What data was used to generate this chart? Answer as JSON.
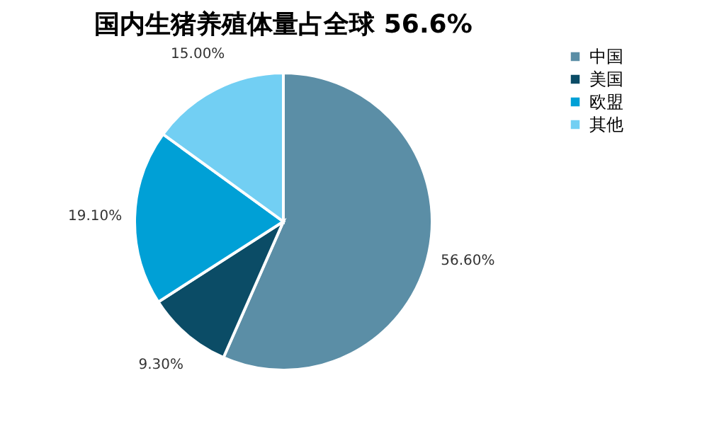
{
  "chart_data": {
    "type": "pie",
    "title": "国内生猪养殖体量占全球 56.6%",
    "categories": [
      "中国",
      "美国",
      "欧盟",
      "其他"
    ],
    "values": [
      56.6,
      9.3,
      19.1,
      15.0
    ],
    "colors": [
      "#5b8ea6",
      "#0b4c66",
      "#00a0d6",
      "#72cff3"
    ],
    "value_labels": [
      "56.60%",
      "9.30%",
      "19.10%",
      "15.00%"
    ],
    "legend": "right"
  }
}
